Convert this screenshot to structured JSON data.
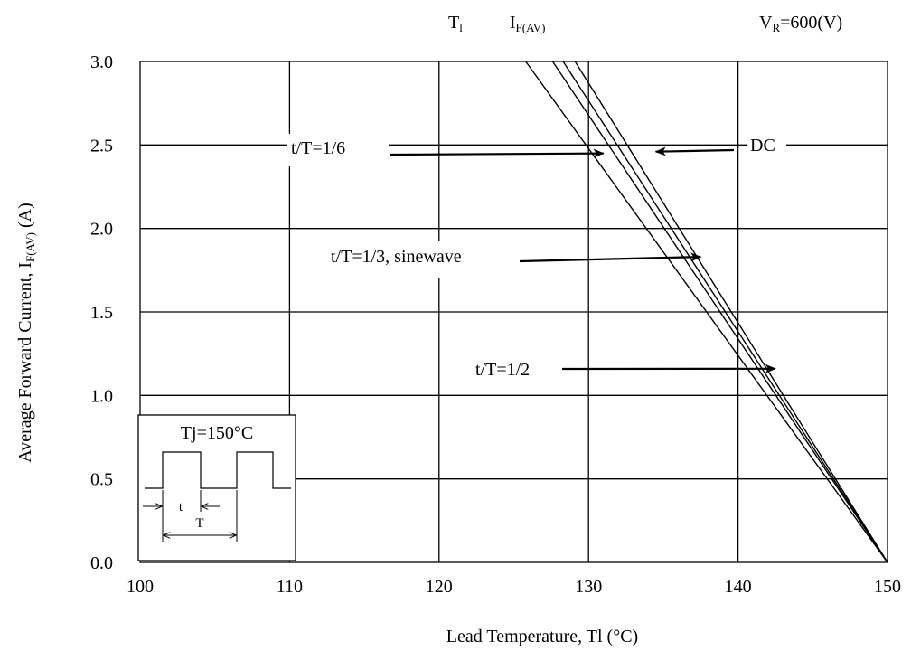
{
  "chart_data": {
    "type": "line",
    "title": {
      "main": "T",
      "main_sub": "l",
      "dash": "—",
      "current": "I",
      "current_sub": "F(AV)"
    },
    "condition": {
      "prefix": "V",
      "sub": "R",
      "suffix": "=600(V)"
    },
    "xlabel": "Lead Temperature, Tl (°C)",
    "ylabel": {
      "prefix": "Average Forward Current, I",
      "sub": "F(AV)",
      "suffix": " (A)"
    },
    "xlim": [
      100,
      150
    ],
    "ylim": [
      0,
      3.0
    ],
    "x_ticks": [
      100,
      110,
      120,
      130,
      140,
      150
    ],
    "x_tick_labels": [
      "100",
      "110",
      "120",
      "130",
      "140",
      "150"
    ],
    "y_ticks": [
      0,
      0.5,
      1.0,
      1.5,
      2.0,
      2.5,
      3.0
    ],
    "y_tick_labels": [
      "0.0",
      "0.5",
      "1.0",
      "1.5",
      "2.0",
      "2.5",
      "3.0"
    ],
    "grid": true,
    "series": [
      {
        "name": "t/T=1/6",
        "x": [
          125.8,
          150
        ],
        "y": [
          3.0,
          0
        ]
      },
      {
        "name": "t/T=1/3, sinewave",
        "x": [
          127.6,
          150
        ],
        "y": [
          3.0,
          0
        ]
      },
      {
        "name": "t/T=1/2",
        "x": [
          128.3,
          150
        ],
        "y": [
          3.0,
          0
        ]
      },
      {
        "name": "DC",
        "x": [
          129.1,
          150
        ],
        "y": [
          3.0,
          0
        ]
      }
    ],
    "annotations": [
      {
        "text": "t/T=1/6",
        "arrow_to": [
          131,
          2.45
        ]
      },
      {
        "text": "DC",
        "arrow_to": [
          134.5,
          2.46
        ]
      },
      {
        "text": "t/T=1/3, sinewave",
        "arrow_to": [
          137.5,
          1.83
        ]
      },
      {
        "text": "t/T=1/2",
        "arrow_to": [
          142.5,
          1.16
        ]
      }
    ],
    "inset": {
      "text": "Tj=150°C",
      "t_label": "t",
      "T_label": "T"
    }
  }
}
